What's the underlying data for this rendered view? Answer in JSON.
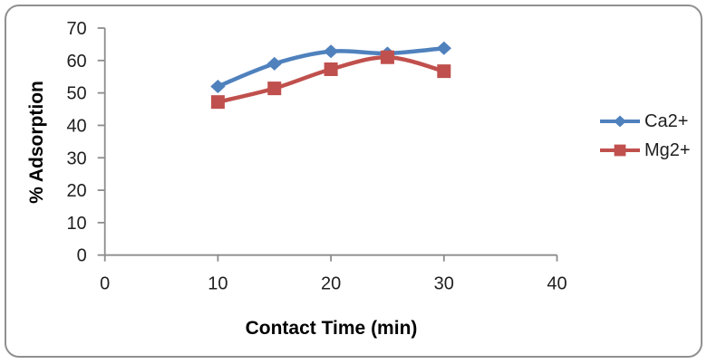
{
  "chart_data": {
    "type": "line",
    "title": "",
    "xlabel": "Contact Time (min)",
    "ylabel": "% Adsorption",
    "x": [
      10,
      15,
      20,
      25,
      30
    ],
    "series": [
      {
        "name": "Ca2+",
        "color": "#4F81BD",
        "marker": "diamond",
        "values": [
          52,
          59,
          62.8,
          62.2,
          63.8
        ]
      },
      {
        "name": "Mg2+",
        "color": "#C0504D",
        "marker": "square",
        "values": [
          47.2,
          51.4,
          57.3,
          61,
          56.7
        ]
      }
    ],
    "xlim": [
      0,
      40
    ],
    "ylim": [
      0,
      70
    ],
    "x_ticks": [
      0,
      10,
      20,
      30,
      40
    ],
    "y_ticks": [
      0,
      10,
      20,
      30,
      40,
      50,
      60,
      70
    ],
    "grid": false,
    "smooth": true,
    "legend_position": "center-right",
    "axis_color": "#8C8C8C",
    "tick_label_color": "#1F1F1F",
    "title_color": "#000000",
    "frame_border_color": "#909090",
    "background": "#FFFFFF"
  }
}
